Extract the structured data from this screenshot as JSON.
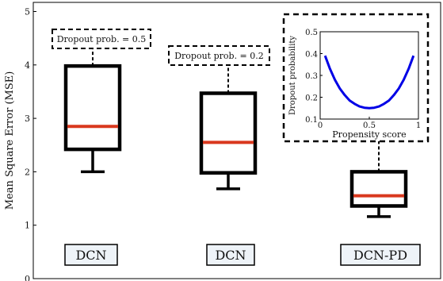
{
  "chart_data": {
    "type": "box",
    "ylabel": "Mean Square Error (MSE)",
    "ylim": [
      0,
      5.1
    ],
    "yticks": [
      0,
      1,
      2,
      3,
      4,
      5
    ],
    "grid": false,
    "boxes": [
      {
        "label": "DCN",
        "whisker_low": 2.0,
        "q1": 2.42,
        "median": 2.85,
        "q3": 3.98,
        "whisker_high": 4.7,
        "annotation": "Dropout prob. = 0.5"
      },
      {
        "label": "DCN",
        "whisker_low": 1.68,
        "q1": 1.98,
        "median": 2.55,
        "q3": 3.47,
        "whisker_high": 4.1,
        "annotation": "Dropout prob. = 0.2"
      },
      {
        "label": "DCN-PD",
        "whisker_low": 1.16,
        "q1": 1.36,
        "median": 1.55,
        "q3": 2.0,
        "whisker_high": 2.6,
        "annotation": ""
      }
    ],
    "inset": {
      "type": "line",
      "xlabel": "Propensity score",
      "ylabel": "Dropout probability",
      "xlim": [
        0,
        1
      ],
      "ylim": [
        0.1,
        0.5
      ],
      "xticks": [
        0,
        0.5,
        1
      ],
      "yticks": [
        0.1,
        0.2,
        0.3,
        0.4,
        0.5
      ],
      "x": [
        0.05,
        0.1,
        0.15,
        0.2,
        0.25,
        0.3,
        0.35,
        0.4,
        0.45,
        0.5,
        0.55,
        0.6,
        0.65,
        0.7,
        0.75,
        0.8,
        0.85,
        0.9,
        0.95
      ],
      "y": [
        0.39,
        0.33,
        0.28,
        0.24,
        0.21,
        0.185,
        0.17,
        0.158,
        0.152,
        0.15,
        0.152,
        0.158,
        0.17,
        0.185,
        0.21,
        0.24,
        0.28,
        0.33,
        0.39
      ],
      "color": "#0000e6"
    },
    "colors": {
      "median": "#d9381e",
      "box": "#000000"
    }
  }
}
